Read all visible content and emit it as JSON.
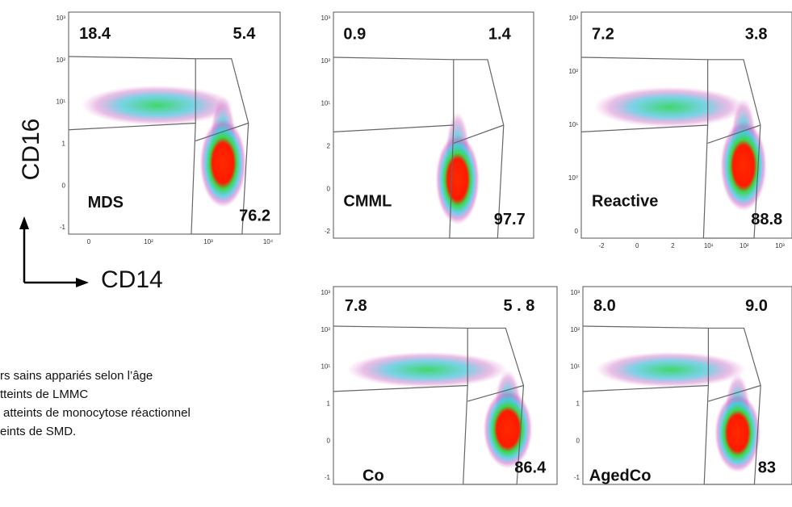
{
  "axis_labels": {
    "y": "CD16",
    "x": "CD14"
  },
  "panels": [
    {
      "label": "MDS",
      "quadrants": [
        "18.4",
        "5.4",
        "76.2"
      ],
      "y_ticks": [
        "10³",
        "10²",
        "10¹",
        "1",
        "0",
        "-1"
      ],
      "x_ticks": [
        "0",
        "10²",
        "10³",
        "10⁴"
      ]
    },
    {
      "label": "CMML",
      "quadrants": [
        "0.9",
        "1.4",
        "97.7"
      ],
      "y_ticks": [
        "10³",
        "10²",
        "10¹",
        "2",
        "0",
        "-2"
      ],
      "x_ticks": []
    },
    {
      "label": "Reactive",
      "quadrants": [
        "7.2",
        "3.8",
        "88.8"
      ],
      "y_ticks": [
        "10³",
        "10²",
        "10¹",
        "10⁰",
        "0"
      ],
      "x_ticks": [
        "-2",
        "0",
        "2",
        "10¹",
        "10²",
        "10³"
      ]
    },
    {
      "label": "Co",
      "quadrants": [
        "7.8",
        "5 . 8",
        "86.4"
      ],
      "y_ticks": [
        "10³",
        "10²",
        "10¹",
        "1",
        "0",
        "-1"
      ],
      "x_ticks": []
    },
    {
      "label": "AgedCo",
      "quadrants": [
        "8.0",
        "9.0",
        "83"
      ],
      "y_ticks": [
        "10³",
        "10²",
        "10¹",
        "1",
        "0",
        "-1"
      ],
      "x_ticks": []
    }
  ],
  "caption_lines": [
    "rs sains appariés selon l’âge",
    "tteints de LMMC",
    "atteints de monocytose réactionnel",
    "eints de SMD."
  ]
}
